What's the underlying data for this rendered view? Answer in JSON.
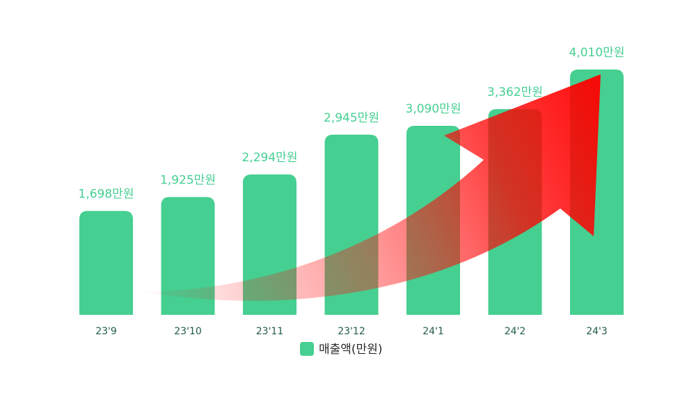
{
  "chart_data": {
    "type": "bar",
    "categories": [
      "23'9",
      "23'10",
      "23'11",
      "23'12",
      "24'1",
      "24'2",
      "24'3"
    ],
    "series": [
      {
        "name": "매출액(만원)",
        "values": [
          1698,
          1925,
          2294,
          2945,
          3090,
          3362,
          4010
        ],
        "value_labels": [
          "1,698만원",
          "1,925만원",
          "2,294만원",
          "2,945만원",
          "3,090만원",
          "3,362만원",
          "4,010만원"
        ],
        "color": "#45cf91"
      }
    ],
    "title": "",
    "xlabel": "",
    "ylabel": "",
    "ylim": [
      0,
      4010
    ],
    "grid": false,
    "legend": {
      "position": "bottom",
      "label": "매출액(만원)",
      "color": "#45cf91"
    },
    "annotation": {
      "type": "trend-arrow",
      "description": "upward-growth-arrow",
      "color": "#ff0000"
    }
  }
}
